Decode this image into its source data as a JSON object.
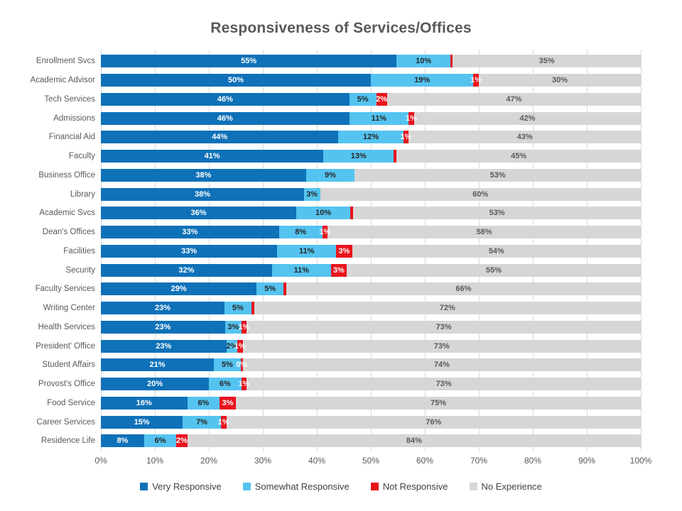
{
  "chart_data": {
    "type": "bar",
    "orientation": "horizontal-stacked",
    "title": "Responsiveness of Services/Offices",
    "categories": [
      "Enrollment Svcs",
      "Academic Advisor",
      "Tech Services",
      "Admissions",
      "Financial Aid",
      "Faculty",
      "Business Office",
      "Library",
      "Academic Svcs",
      "Dean's Offices",
      "Facilities",
      "Security",
      "Faculty Services",
      "Writing Center",
      "Health Services",
      "President' Office",
      "Student Affairs",
      "Provost's Office",
      "Food Service",
      "Career Services",
      "Residence Life"
    ],
    "series": [
      {
        "name": "Very Responsive",
        "color": "#0f71b8",
        "label_color": "#ffffff",
        "values": [
          55,
          50,
          46,
          46,
          44,
          41,
          38,
          38,
          36,
          33,
          33,
          32,
          29,
          23,
          23,
          23,
          21,
          20,
          16,
          15,
          8
        ],
        "labels": [
          "55%",
          "50%",
          "46%",
          "46%",
          "44%",
          "41%",
          "38%",
          "38%",
          "36%",
          "33%",
          "33%",
          "32%",
          "29%",
          "23%",
          "23%",
          "23%",
          "21%",
          "20%",
          "16%",
          "15%",
          "8%"
        ]
      },
      {
        "name": "Somewhat Responsive",
        "color": "#55c3f0",
        "label_color": "#262626",
        "values": [
          10,
          19,
          5,
          11,
          12,
          13,
          9,
          3,
          10,
          8,
          11,
          11,
          5,
          5,
          3,
          2,
          5,
          6,
          6,
          7,
          6
        ],
        "labels": [
          "10%",
          "19%",
          "5%",
          "11%",
          "12%",
          "13%",
          "9%",
          "3%",
          "10%",
          "8%",
          "11%",
          "11%",
          "5%",
          "5%",
          "3%",
          "2%",
          "5%",
          "6%",
          "6%",
          "7%",
          "6%"
        ]
      },
      {
        "name": "Not Responsive",
        "color": "#e9131c",
        "label_color": "#ffffff",
        "values": [
          0.4,
          1,
          2,
          1,
          1,
          0.5,
          0,
          0,
          0.5,
          1,
          3,
          3,
          0.5,
          0.5,
          1,
          1,
          0.4,
          1,
          3,
          1,
          2
        ],
        "labels": [
          "",
          "1%",
          "2%",
          "1%",
          "1%",
          "",
          "",
          "",
          "",
          "1%",
          "3%",
          "3%",
          "",
          "",
          "1%",
          "1%",
          "0%",
          "1%",
          "3%",
          "1%",
          "2%"
        ]
      },
      {
        "name": "No Experience",
        "color": "#d6d6d6",
        "label_color": "#595959",
        "values": [
          35,
          30,
          47,
          42,
          43,
          45,
          53,
          60,
          53,
          58,
          54,
          55,
          66,
          72,
          73,
          73,
          74,
          73,
          75,
          76,
          84
        ],
        "labels": [
          "35%",
          "30%",
          "47%",
          "42%",
          "43%",
          "45%",
          "53%",
          "60%",
          "53%",
          "58%",
          "54%",
          "55%",
          "66%",
          "72%",
          "73%",
          "73%",
          "74%",
          "73%",
          "75%",
          "76%",
          "84%"
        ]
      }
    ],
    "x_axis": {
      "range": [
        0,
        100
      ],
      "tick_labels": [
        "0%",
        "10%",
        "20%",
        "30%",
        "40%",
        "50%",
        "60%",
        "70%",
        "80%",
        "90%",
        "100%"
      ]
    },
    "grid": "vertical",
    "legend_position": "bottom",
    "colors": {
      "gridline": "#d9d9d9",
      "title_text": "#595959",
      "axis_text": "#595959",
      "legend_text": "#404040"
    }
  }
}
